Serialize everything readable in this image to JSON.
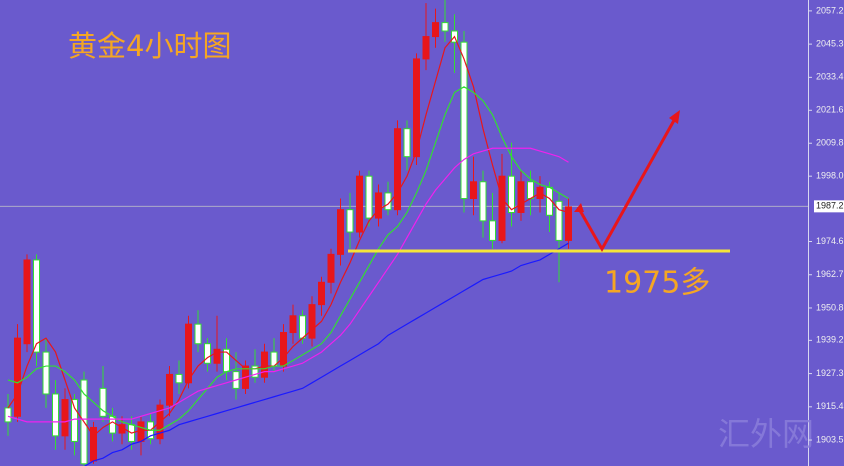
{
  "chart_data": {
    "type": "candlestick",
    "title": "黄金4小时图",
    "annotation": "1975多",
    "watermark": "汇外网",
    "ylim": [
      1894.2,
      2061.1
    ],
    "yticks": [
      1903.5,
      1915.4,
      1927.3,
      1939.2,
      1950.8,
      1962.7,
      1974.6,
      {
        "value": 1998.0,
        "label": "1998.0"
      },
      2009.8,
      2021.6,
      2033.4,
      2045.3,
      2057.2
    ],
    "current_price": 1987.2,
    "up_color": "#e8161b",
    "down_color": "#ffffff",
    "down_edge_color": "#33dd33",
    "background": "#6a5acd",
    "open": [
      1915,
      1912,
      1938,
      1968,
      1935,
      1920,
      1905,
      1918,
      1925,
      1896,
      1922,
      1912,
      1906,
      1909,
      1903,
      1910,
      1904,
      1916,
      1927,
      1924,
      1945,
      1938,
      1931,
      1936,
      1928,
      1922,
      1930,
      1926,
      1935,
      1930,
      1942,
      1948,
      1940,
      1952,
      1960,
      1970,
      1986,
      1978,
      1998,
      1983,
      1992,
      1986,
      2015,
      2005,
      2040,
      2048,
      2053,
      2050,
      2046,
      1990,
      1996,
      1982,
      1975,
      1998,
      1985,
      1996,
      1990,
      1994,
      1989,
      1975
    ],
    "high": [
      1920,
      1945,
      1970,
      1970,
      1940,
      1925,
      1922,
      1920,
      1928,
      1910,
      1930,
      1915,
      1912,
      1912,
      1912,
      1913,
      1918,
      1930,
      1932,
      1948,
      1950,
      1940,
      1948,
      1940,
      1935,
      1932,
      1936,
      1938,
      1940,
      1945,
      1952,
      1950,
      1955,
      1962,
      1972,
      1990,
      1992,
      2000,
      2000,
      1995,
      1996,
      2018,
      2018,
      2042,
      2060,
      2058,
      2062,
      2056,
      2050,
      2005,
      2000,
      1992,
      2006,
      2010,
      2000,
      2000,
      1998,
      1996,
      1992,
      1990
    ],
    "low": [
      1905,
      1910,
      1935,
      1930,
      1915,
      1900,
      1900,
      1898,
      1893,
      1895,
      1910,
      1903,
      1902,
      1900,
      1898,
      1902,
      1902,
      1912,
      1920,
      1922,
      1935,
      1928,
      1928,
      1925,
      1918,
      1920,
      1924,
      1924,
      1928,
      1928,
      1938,
      1938,
      1937,
      1948,
      1956,
      1966,
      1972,
      1976,
      1980,
      1980,
      1984,
      1984,
      2000,
      2002,
      2036,
      2044,
      2046,
      2035,
      1985,
      1984,
      1976,
      1972,
      1974,
      1980,
      1982,
      1984,
      1985,
      1978,
      1960,
      1972
    ],
    "close": [
      1910,
      1940,
      1968,
      1935,
      1920,
      1905,
      1918,
      1903,
      1895,
      1908,
      1912,
      1906,
      1909,
      1903,
      1910,
      1904,
      1916,
      1927,
      1924,
      1945,
      1938,
      1931,
      1936,
      1928,
      1922,
      1930,
      1926,
      1935,
      1930,
      1942,
      1948,
      1940,
      1952,
      1960,
      1970,
      1986,
      1978,
      1998,
      1983,
      1992,
      1986,
      2015,
      2005,
      2040,
      2048,
      2053,
      2050,
      2046,
      1990,
      1996,
      1982,
      1975,
      1998,
      1985,
      1996,
      1990,
      1994,
      1984,
      1975,
      1987
    ],
    "series": [
      {
        "color": "#e8161b",
        "values": [
          1915,
          1920,
          1930,
          1938,
          1940,
          1935,
          1925,
          1915,
          1910,
          1905,
          1908,
          1910,
          1908,
          1906,
          1907,
          1907,
          1910,
          1913,
          1918,
          1925,
          1930,
          1933,
          1935,
          1935,
          1932,
          1929,
          1929,
          1930,
          1930,
          1933,
          1937,
          1940,
          1943,
          1946,
          1952,
          1960,
          1967,
          1975,
          1982,
          1986,
          1988,
          1992,
          1998,
          2007,
          2020,
          2032,
          2044,
          2048,
          2040,
          2030,
          2015,
          2002,
          1990,
          1986,
          1988,
          1990,
          1992,
          1990,
          1986,
          1985
        ]
      },
      {
        "color": "#33dd33",
        "values": [
          1925,
          1924,
          1926,
          1929,
          1930,
          1930,
          1928,
          1925,
          1920,
          1917,
          1914,
          1912,
          1910,
          1909,
          1908,
          1907,
          1907,
          1909,
          1911,
          1914,
          1918,
          1922,
          1926,
          1928,
          1929,
          1929,
          1929,
          1929,
          1930,
          1930,
          1932,
          1934,
          1936,
          1938,
          1942,
          1948,
          1954,
          1960,
          1966,
          1972,
          1977,
          1980,
          1985,
          1992,
          2000,
          2010,
          2020,
          2028,
          2030,
          2028,
          2025,
          2020,
          2012,
          2005,
          2000,
          1997,
          1995,
          1994,
          1992,
          1990
        ]
      },
      {
        "color": "#ee22ee",
        "values": [
          1912,
          1911,
          1910,
          1910,
          1910,
          1910,
          1910,
          1911,
          1911,
          1911,
          1911,
          1911,
          1911,
          1911,
          1912,
          1913,
          1914,
          1915,
          1917,
          1919,
          1921,
          1922,
          1923,
          1924,
          1925,
          1926,
          1927,
          1928,
          1928,
          1929,
          1930,
          1931,
          1933,
          1935,
          1938,
          1941,
          1945,
          1950,
          1955,
          1960,
          1965,
          1970,
          1976,
          1982,
          1988,
          1993,
          1997,
          2001,
          2004,
          2006,
          2007,
          2008,
          2008,
          2008,
          2008,
          2008,
          2007,
          2006,
          2005,
          2003
        ]
      },
      {
        "color": "#1a1aff",
        "values": [
          null,
          null,
          null,
          null,
          null,
          null,
          null,
          null,
          1894,
          1896,
          1897,
          1899,
          1900,
          1902,
          1903,
          1905,
          1906,
          1907,
          1909,
          1910,
          1911,
          1912,
          1913,
          1914,
          1915,
          1916,
          1917,
          1918,
          1919,
          1920,
          1921,
          1922,
          1924,
          1926,
          1928,
          1930,
          1932,
          1934,
          1936,
          1938,
          1941,
          1943,
          1945,
          1947,
          1949,
          1951,
          1953,
          1955,
          1957,
          1959,
          1961,
          1962,
          1963,
          1964,
          1966,
          1967,
          1968,
          1970,
          1972,
          1974
        ]
      }
    ]
  }
}
